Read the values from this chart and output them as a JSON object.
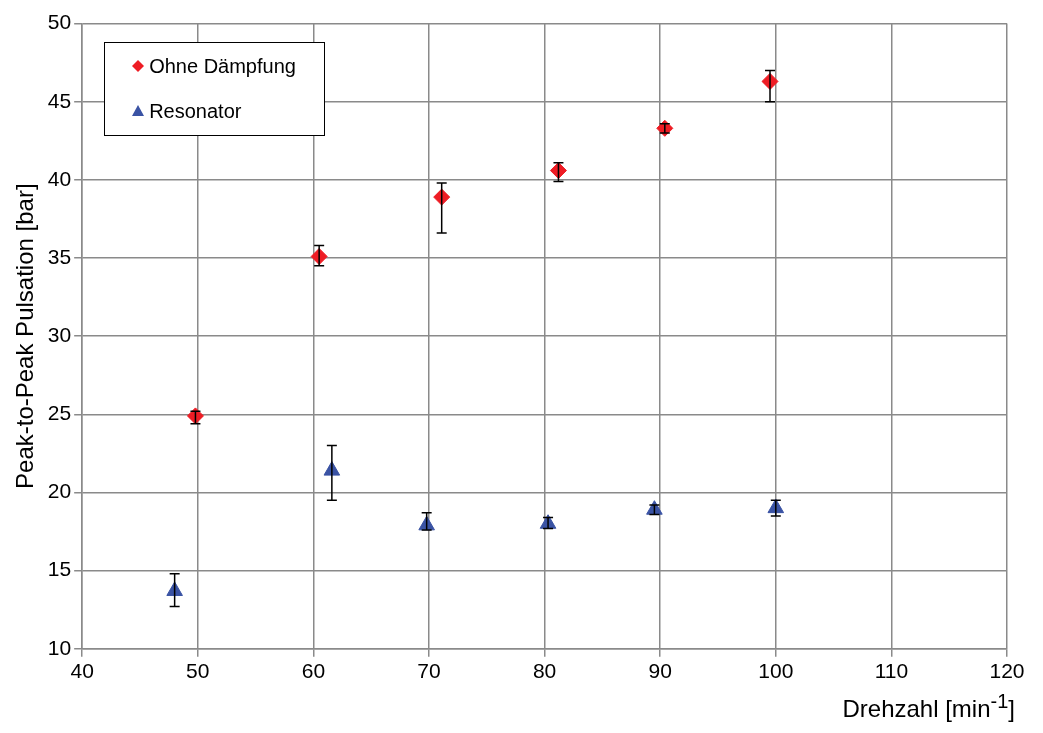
{
  "chart_data": {
    "type": "scatter",
    "xlabel": "Drehzahl [min$^{-1}$]",
    "ylabel": "Peak-to-Peak Pulsation [bar]",
    "xlim": [
      40,
      120
    ],
    "xticks": [
      40,
      50,
      60,
      70,
      80,
      90,
      100,
      110,
      120
    ],
    "ylim": [
      10,
      50
    ],
    "yticks": [
      10,
      15,
      20,
      25,
      30,
      35,
      40,
      45,
      50
    ],
    "grid": true,
    "legend": "top left",
    "series": [
      {
        "name": "Ohne Dämpfung",
        "color": "#ee1c24",
        "marker": "diamond",
        "x": [
          49.8,
          60.5,
          71.1,
          81.2,
          90.4,
          99.5
        ],
        "values": [
          24.9,
          35.1,
          38.9,
          40.6,
          43.3,
          46.3
        ],
        "errors": [
          [
            24.4,
            25.2
          ],
          [
            34.5,
            35.8
          ],
          [
            36.6,
            39.8
          ],
          [
            39.9,
            41.1
          ],
          [
            43.0,
            43.6
          ],
          [
            45.0,
            47.0
          ]
        ]
      },
      {
        "name": "Resonator",
        "color": "#3a53a4",
        "marker": "triangle",
        "x": [
          48.0,
          61.6,
          69.8,
          80.3,
          89.5,
          100.0
        ],
        "values": [
          13.7,
          21.4,
          17.9,
          18.0,
          18.9,
          19.0
        ],
        "errors": [
          [
            12.7,
            14.8
          ],
          [
            19.5,
            23.0
          ],
          [
            17.6,
            18.7
          ],
          [
            17.7,
            18.4
          ],
          [
            18.6,
            19.2
          ],
          [
            18.5,
            19.5
          ]
        ]
      }
    ]
  }
}
